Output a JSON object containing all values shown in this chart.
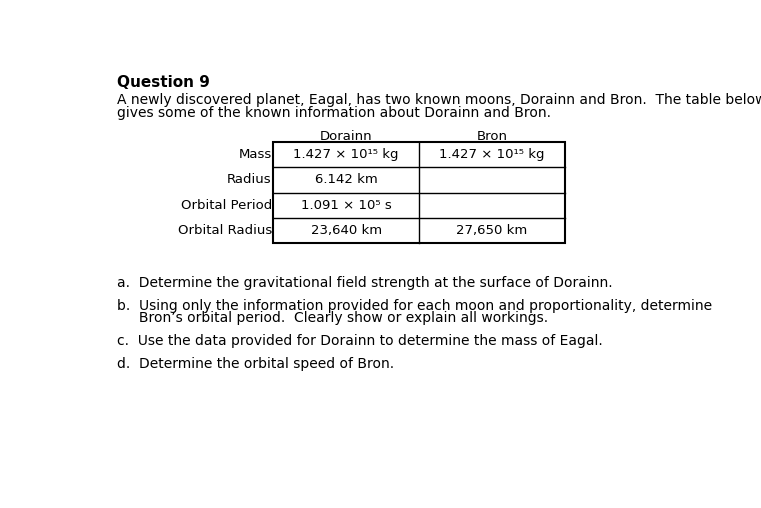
{
  "title": "Question 9",
  "intro_line1": "A newly discovered planet, Eagal, has two known moons, Dorainn and Bron.  The table below",
  "intro_line2": "gives some of the known information about Dorainn and Bron.",
  "col_headers": [
    "Dorainn",
    "Bron"
  ],
  "row_labels": [
    "Mass",
    "Radius",
    "Orbital Period",
    "Orbital Radius"
  ],
  "dorainn_values": [
    "1.427 × 10¹⁵ kg",
    "6.142 km",
    "1.091 × 10⁵ s",
    "23,640 km"
  ],
  "bron_values": [
    "1.427 × 10¹⁵ kg",
    "",
    "",
    "27,650 km"
  ],
  "question_a": "a.  Determine the gravitational field strength at the surface of Dorainn.",
  "question_b1": "b.  Using only the information provided for each moon and proportionality, determine",
  "question_b2": "     Bron’s orbital period.  Clearly show or explain all workings.",
  "question_c": "c.  Use the data provided for Dorainn to determine the mass of Eagal.",
  "question_d": "d.  Determine the orbital speed of Bron.",
  "bg_color": "#ffffff",
  "text_color": "#000000",
  "font_size_title": 11,
  "font_size_body": 10,
  "font_size_table": 9.5
}
